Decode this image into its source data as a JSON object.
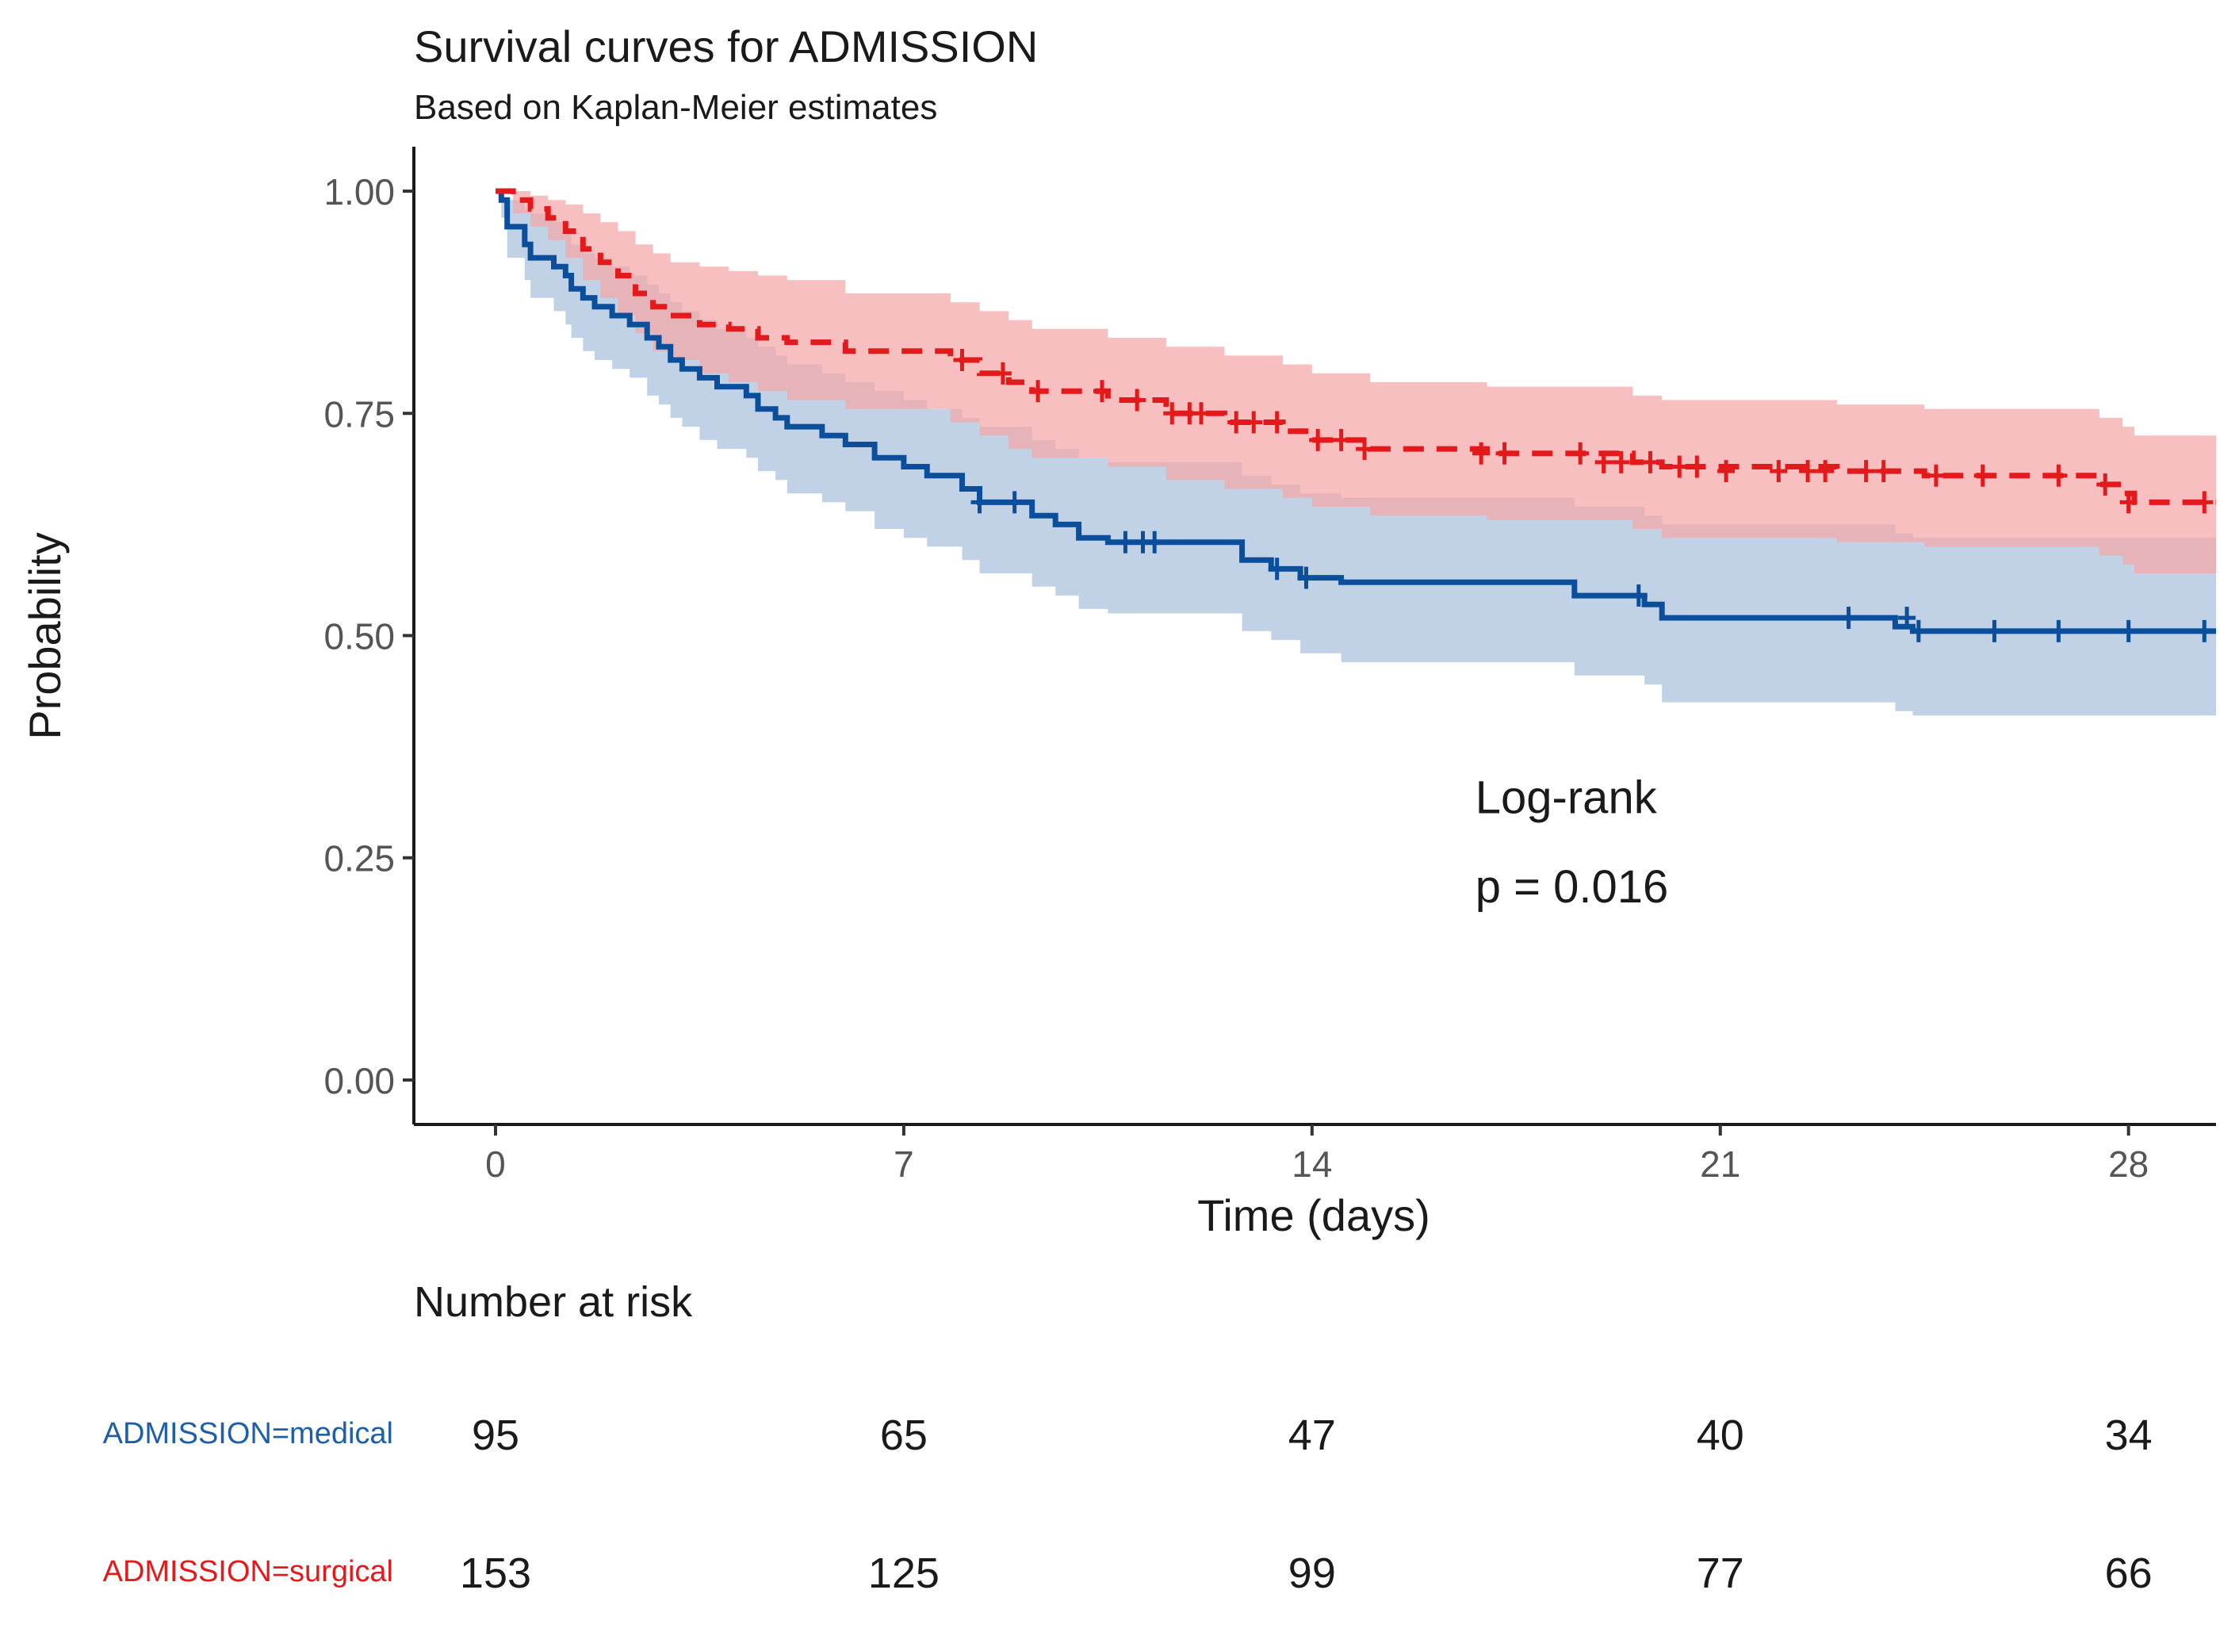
{
  "chart_data": {
    "type": "survival",
    "title": "Survival curves for ADMISSION",
    "subtitle": "Based on Kaplan-Meier estimates",
    "xlabel": "Time (days)",
    "ylabel": "Probability",
    "xlim": [
      -1.4,
      29.5
    ],
    "ylim": [
      -0.05,
      1.05
    ],
    "x_ticks": [
      0,
      7,
      14,
      21,
      28
    ],
    "x_tick_labels": [
      "0",
      "7",
      "14",
      "21",
      "28"
    ],
    "y_ticks": [
      0,
      0.25,
      0.5,
      0.75,
      1.0
    ],
    "y_tick_labels": [
      "0.00",
      "0.25",
      "0.50",
      "0.75",
      "1.00"
    ],
    "annotation": {
      "line1": "Log-rank",
      "line2": "p = 0.016",
      "x": 16.8,
      "y1": 0.3,
      "y2": 0.2
    },
    "series": [
      {
        "name": "ADMISSION=medical",
        "color": "#0b4f9c",
        "band_color": "#a9c1dc",
        "dash": "solid",
        "steps": [
          [
            0,
            1.0
          ],
          [
            0.1,
            0.99
          ],
          [
            0.2,
            0.96
          ],
          [
            0.5,
            0.94
          ],
          [
            0.6,
            0.925
          ],
          [
            1.0,
            0.915
          ],
          [
            1.2,
            0.905
          ],
          [
            1.3,
            0.89
          ],
          [
            1.5,
            0.88
          ],
          [
            1.7,
            0.87
          ],
          [
            2.0,
            0.86
          ],
          [
            2.3,
            0.85
          ],
          [
            2.6,
            0.835
          ],
          [
            2.8,
            0.825
          ],
          [
            3.0,
            0.81
          ],
          [
            3.2,
            0.8
          ],
          [
            3.5,
            0.79
          ],
          [
            3.8,
            0.78
          ],
          [
            4.3,
            0.77
          ],
          [
            4.5,
            0.755
          ],
          [
            4.8,
            0.745
          ],
          [
            5.0,
            0.735
          ],
          [
            5.6,
            0.725
          ],
          [
            6.0,
            0.715
          ],
          [
            6.5,
            0.7
          ],
          [
            7.0,
            0.69
          ],
          [
            7.4,
            0.68
          ],
          [
            8.0,
            0.665
          ],
          [
            8.3,
            0.65
          ],
          [
            9.2,
            0.635
          ],
          [
            9.6,
            0.625
          ],
          [
            10.0,
            0.61
          ],
          [
            10.5,
            0.605
          ],
          [
            12.8,
            0.585
          ],
          [
            13.3,
            0.575
          ],
          [
            13.8,
            0.565
          ],
          [
            14.5,
            0.56
          ],
          [
            18.5,
            0.545
          ],
          [
            19.7,
            0.535
          ],
          [
            20.0,
            0.52
          ],
          [
            24.0,
            0.51
          ],
          [
            24.3,
            0.505
          ],
          [
            29.5,
            0.505
          ]
        ],
        "upper": [
          [
            0,
            1.0
          ],
          [
            0.1,
            0.99
          ],
          [
            0.2,
            0.99
          ],
          [
            0.5,
            0.98
          ],
          [
            0.6,
            0.975
          ],
          [
            1.0,
            0.965
          ],
          [
            1.2,
            0.955
          ],
          [
            1.3,
            0.94
          ],
          [
            1.5,
            0.93
          ],
          [
            1.7,
            0.925
          ],
          [
            2.0,
            0.915
          ],
          [
            2.3,
            0.905
          ],
          [
            2.6,
            0.895
          ],
          [
            2.8,
            0.885
          ],
          [
            3.0,
            0.875
          ],
          [
            3.2,
            0.865
          ],
          [
            3.5,
            0.855
          ],
          [
            3.8,
            0.845
          ],
          [
            4.3,
            0.835
          ],
          [
            4.5,
            0.825
          ],
          [
            4.8,
            0.815
          ],
          [
            5.0,
            0.805
          ],
          [
            5.6,
            0.795
          ],
          [
            6.0,
            0.785
          ],
          [
            6.5,
            0.775
          ],
          [
            7.0,
            0.765
          ],
          [
            7.4,
            0.755
          ],
          [
            8.0,
            0.745
          ],
          [
            8.3,
            0.735
          ],
          [
            9.2,
            0.72
          ],
          [
            9.6,
            0.71
          ],
          [
            10.0,
            0.7
          ],
          [
            10.5,
            0.695
          ],
          [
            12.8,
            0.68
          ],
          [
            13.3,
            0.67
          ],
          [
            13.8,
            0.66
          ],
          [
            14.5,
            0.655
          ],
          [
            18.5,
            0.645
          ],
          [
            19.7,
            0.635
          ],
          [
            20.0,
            0.625
          ],
          [
            24.0,
            0.615
          ],
          [
            24.3,
            0.61
          ],
          [
            29.5,
            0.61
          ]
        ],
        "lower": [
          [
            0,
            1.0
          ],
          [
            0.1,
            0.97
          ],
          [
            0.2,
            0.925
          ],
          [
            0.5,
            0.9
          ],
          [
            0.6,
            0.88
          ],
          [
            1.0,
            0.865
          ],
          [
            1.2,
            0.85
          ],
          [
            1.3,
            0.835
          ],
          [
            1.5,
            0.82
          ],
          [
            1.7,
            0.81
          ],
          [
            2.0,
            0.8
          ],
          [
            2.3,
            0.79
          ],
          [
            2.6,
            0.77
          ],
          [
            2.8,
            0.76
          ],
          [
            3.0,
            0.745
          ],
          [
            3.2,
            0.735
          ],
          [
            3.5,
            0.72
          ],
          [
            3.8,
            0.71
          ],
          [
            4.3,
            0.7
          ],
          [
            4.5,
            0.685
          ],
          [
            4.8,
            0.675
          ],
          [
            5.0,
            0.66
          ],
          [
            5.6,
            0.65
          ],
          [
            6.0,
            0.64
          ],
          [
            6.5,
            0.62
          ],
          [
            7.0,
            0.61
          ],
          [
            7.4,
            0.6
          ],
          [
            8.0,
            0.585
          ],
          [
            8.3,
            0.57
          ],
          [
            9.2,
            0.555
          ],
          [
            9.6,
            0.545
          ],
          [
            10.0,
            0.53
          ],
          [
            10.5,
            0.525
          ],
          [
            12.8,
            0.505
          ],
          [
            13.3,
            0.495
          ],
          [
            13.8,
            0.48
          ],
          [
            14.5,
            0.47
          ],
          [
            18.5,
            0.455
          ],
          [
            19.7,
            0.445
          ],
          [
            20.0,
            0.425
          ],
          [
            24.0,
            0.415
          ],
          [
            24.3,
            0.41
          ],
          [
            29.5,
            0.41
          ]
        ],
        "censors": [
          [
            8.3,
            0.65
          ],
          [
            8.9,
            0.65
          ],
          [
            10.8,
            0.605
          ],
          [
            11.1,
            0.605
          ],
          [
            11.3,
            0.605
          ],
          [
            13.4,
            0.575
          ],
          [
            13.9,
            0.565
          ],
          [
            19.6,
            0.545
          ],
          [
            23.2,
            0.52
          ],
          [
            24.2,
            0.52
          ],
          [
            24.4,
            0.505
          ],
          [
            25.7,
            0.505
          ],
          [
            26.8,
            0.505
          ],
          [
            28.0,
            0.505
          ],
          [
            29.3,
            0.505
          ]
        ],
        "at_risk": [
          "95",
          "65",
          "47",
          "40",
          "34"
        ]
      },
      {
        "name": "ADMISSION=surgical",
        "color": "#e31a1c",
        "band_color": "#f4a6a6",
        "dash": "dashed",
        "steps": [
          [
            0,
            1.0
          ],
          [
            0.3,
            0.99
          ],
          [
            0.6,
            0.98
          ],
          [
            0.9,
            0.97
          ],
          [
            1.2,
            0.955
          ],
          [
            1.5,
            0.935
          ],
          [
            1.8,
            0.92
          ],
          [
            2.1,
            0.905
          ],
          [
            2.4,
            0.885
          ],
          [
            2.7,
            0.87
          ],
          [
            3.0,
            0.86
          ],
          [
            3.5,
            0.85
          ],
          [
            4.0,
            0.845
          ],
          [
            4.5,
            0.835
          ],
          [
            5.0,
            0.83
          ],
          [
            6.0,
            0.82
          ],
          [
            7.8,
            0.81
          ],
          [
            8.3,
            0.795
          ],
          [
            8.8,
            0.785
          ],
          [
            9.2,
            0.775
          ],
          [
            10.5,
            0.765
          ],
          [
            11.5,
            0.75
          ],
          [
            12.5,
            0.74
          ],
          [
            13.5,
            0.73
          ],
          [
            14.0,
            0.72
          ],
          [
            15.0,
            0.71
          ],
          [
            17.0,
            0.705
          ],
          [
            19.5,
            0.695
          ],
          [
            20.0,
            0.69
          ],
          [
            23.0,
            0.685
          ],
          [
            24.5,
            0.68
          ],
          [
            27.5,
            0.67
          ],
          [
            27.9,
            0.66
          ],
          [
            28.1,
            0.65
          ],
          [
            29.5,
            0.65
          ]
        ],
        "upper": [
          [
            0,
            1.0
          ],
          [
            0.3,
            1.0
          ],
          [
            0.6,
            0.995
          ],
          [
            0.9,
            0.99
          ],
          [
            1.2,
            0.985
          ],
          [
            1.5,
            0.975
          ],
          [
            1.8,
            0.965
          ],
          [
            2.1,
            0.955
          ],
          [
            2.4,
            0.94
          ],
          [
            2.7,
            0.93
          ],
          [
            3.0,
            0.92
          ],
          [
            3.5,
            0.915
          ],
          [
            4.0,
            0.91
          ],
          [
            4.5,
            0.905
          ],
          [
            5.0,
            0.9
          ],
          [
            6.0,
            0.885
          ],
          [
            7.8,
            0.875
          ],
          [
            8.3,
            0.865
          ],
          [
            8.8,
            0.855
          ],
          [
            9.2,
            0.845
          ],
          [
            10.5,
            0.835
          ],
          [
            11.5,
            0.825
          ],
          [
            12.5,
            0.815
          ],
          [
            13.5,
            0.805
          ],
          [
            14.0,
            0.795
          ],
          [
            15.0,
            0.785
          ],
          [
            17.0,
            0.78
          ],
          [
            19.5,
            0.77
          ],
          [
            20.0,
            0.765
          ],
          [
            23.0,
            0.76
          ],
          [
            24.5,
            0.755
          ],
          [
            27.5,
            0.745
          ],
          [
            27.9,
            0.735
          ],
          [
            28.1,
            0.725
          ],
          [
            29.5,
            0.725
          ]
        ],
        "lower": [
          [
            0,
            1.0
          ],
          [
            0.3,
            0.975
          ],
          [
            0.6,
            0.96
          ],
          [
            0.9,
            0.945
          ],
          [
            1.2,
            0.925
          ],
          [
            1.5,
            0.9
          ],
          [
            1.8,
            0.88
          ],
          [
            2.1,
            0.86
          ],
          [
            2.4,
            0.84
          ],
          [
            2.7,
            0.82
          ],
          [
            3.0,
            0.81
          ],
          [
            3.5,
            0.795
          ],
          [
            4.0,
            0.785
          ],
          [
            4.5,
            0.775
          ],
          [
            5.0,
            0.765
          ],
          [
            6.0,
            0.755
          ],
          [
            7.8,
            0.74
          ],
          [
            8.3,
            0.725
          ],
          [
            8.8,
            0.71
          ],
          [
            9.2,
            0.7
          ],
          [
            10.5,
            0.69
          ],
          [
            11.5,
            0.675
          ],
          [
            12.5,
            0.665
          ],
          [
            13.5,
            0.655
          ],
          [
            14.0,
            0.645
          ],
          [
            15.0,
            0.635
          ],
          [
            17.0,
            0.63
          ],
          [
            19.5,
            0.62
          ],
          [
            20.0,
            0.61
          ],
          [
            23.0,
            0.605
          ],
          [
            24.5,
            0.6
          ],
          [
            27.5,
            0.59
          ],
          [
            27.9,
            0.58
          ],
          [
            28.1,
            0.57
          ],
          [
            29.5,
            0.57
          ]
        ],
        "censors": [
          [
            8.0,
            0.81
          ],
          [
            8.7,
            0.795
          ],
          [
            9.3,
            0.775
          ],
          [
            10.4,
            0.775
          ],
          [
            11.0,
            0.765
          ],
          [
            11.6,
            0.75
          ],
          [
            11.9,
            0.75
          ],
          [
            12.1,
            0.75
          ],
          [
            12.7,
            0.74
          ],
          [
            13.0,
            0.74
          ],
          [
            13.4,
            0.74
          ],
          [
            14.1,
            0.72
          ],
          [
            14.5,
            0.72
          ],
          [
            14.9,
            0.71
          ],
          [
            16.9,
            0.705
          ],
          [
            17.3,
            0.705
          ],
          [
            18.6,
            0.705
          ],
          [
            19.0,
            0.695
          ],
          [
            19.3,
            0.695
          ],
          [
            19.8,
            0.695
          ],
          [
            20.3,
            0.69
          ],
          [
            20.6,
            0.69
          ],
          [
            21.1,
            0.685
          ],
          [
            22.0,
            0.685
          ],
          [
            22.5,
            0.685
          ],
          [
            22.8,
            0.685
          ],
          [
            23.5,
            0.685
          ],
          [
            23.8,
            0.685
          ],
          [
            24.7,
            0.68
          ],
          [
            25.5,
            0.68
          ],
          [
            26.8,
            0.68
          ],
          [
            27.6,
            0.67
          ],
          [
            28.0,
            0.65
          ],
          [
            29.3,
            0.65
          ]
        ],
        "at_risk": [
          "153",
          "125",
          "99",
          "77",
          "66"
        ]
      }
    ],
    "risk_table": {
      "title": "Number at risk",
      "times": [
        0,
        7,
        14,
        21,
        28
      ],
      "rows": [
        {
          "label": "ADMISSION=medical",
          "color": "#1f5fa8",
          "values": [
            "95",
            "65",
            "47",
            "40",
            "34"
          ]
        },
        {
          "label": "ADMISSION=surgical",
          "color": "#e31a1c",
          "values": [
            "153",
            "125",
            "99",
            "77",
            "66"
          ]
        }
      ]
    }
  }
}
